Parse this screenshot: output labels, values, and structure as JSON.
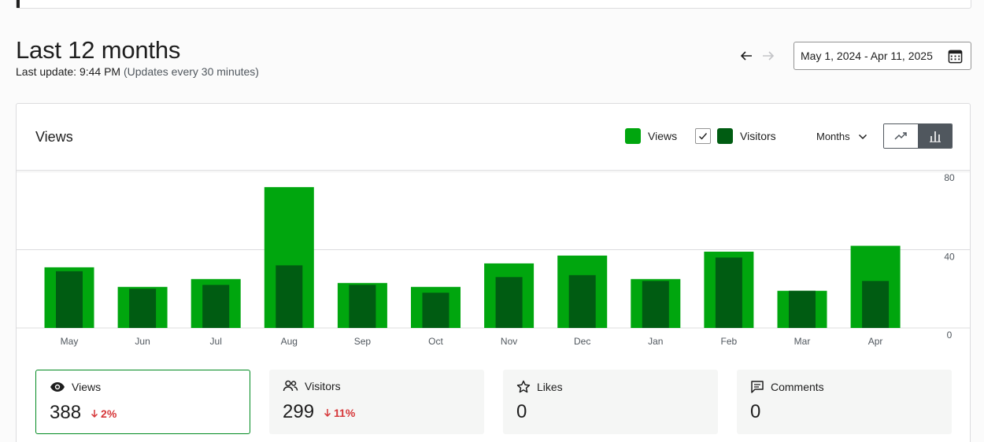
{
  "header": {
    "title": "Last 12 months",
    "last_update": "Last update: 9:44 PM",
    "update_note": "(Updates every 30 minutes)"
  },
  "date_range": {
    "label": "May 1, 2024 - Apr 11, 2025"
  },
  "card": {
    "title": "Views"
  },
  "legend": {
    "views_label": "Views",
    "visitors_label": "Visitors",
    "visitors_checked": true
  },
  "period": {
    "selected": "Months"
  },
  "colors": {
    "views": "#00a60e",
    "visitors": "#005c12",
    "grid": "#dcdcde",
    "accent": "#008a20",
    "down": "#d63638"
  },
  "chart_data": {
    "type": "bar",
    "categories": [
      "May",
      "Jun",
      "Jul",
      "Aug",
      "Sep",
      "Oct",
      "Nov",
      "Dec",
      "Jan",
      "Feb",
      "Mar",
      "Apr"
    ],
    "series": [
      {
        "name": "Views",
        "values": [
          31,
          21,
          25,
          72,
          23,
          21,
          33,
          37,
          25,
          39,
          19,
          42
        ]
      },
      {
        "name": "Visitors",
        "values": [
          29,
          20,
          22,
          32,
          22,
          18,
          26,
          27,
          24,
          36,
          19,
          24
        ]
      }
    ],
    "y_ticks": [
      80,
      40,
      0
    ],
    "ylim": [
      0,
      80
    ],
    "grid": true,
    "xlabel": "",
    "ylabel": ""
  },
  "stats": [
    {
      "label": "Views",
      "value": "388",
      "change": "2%",
      "icon": "eye-icon"
    },
    {
      "label": "Visitors",
      "value": "299",
      "change": "11%",
      "icon": "people-icon"
    },
    {
      "label": "Likes",
      "value": "0",
      "change": "",
      "icon": "star-icon"
    },
    {
      "label": "Comments",
      "value": "0",
      "change": "",
      "icon": "comment-icon"
    }
  ]
}
